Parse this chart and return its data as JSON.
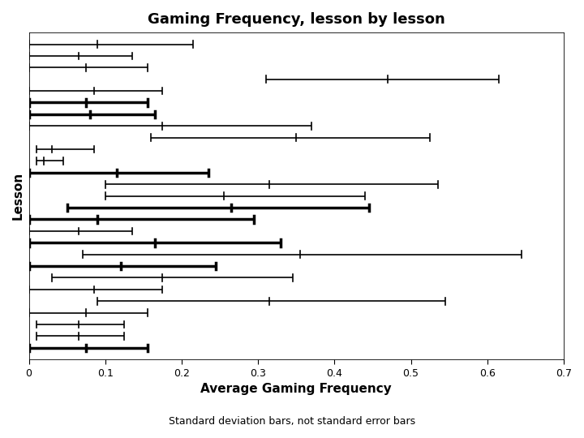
{
  "title": "Gaming Frequency, lesson by lesson",
  "xlabel": "Average Gaming Frequency",
  "ylabel": "Lesson",
  "subtitle": "Standard deviation bars, not standard error bars",
  "xlim": [
    0,
    0.7
  ],
  "xticks": [
    0,
    0.1,
    0.2,
    0.3,
    0.4,
    0.5,
    0.6,
    0.7
  ],
  "bg_color": "#ffffff",
  "title_fontsize": 13,
  "axis_label_fontsize": 11,
  "subtitle_fontsize": 9,
  "tick_fontsize": 9,
  "lessons": [
    {
      "lo": 0.0,
      "mean": 0.09,
      "hi": 0.215,
      "lw": 1.2
    },
    {
      "lo": 0.0,
      "mean": 0.065,
      "hi": 0.135,
      "lw": 1.2
    },
    {
      "lo": 0.0,
      "mean": 0.075,
      "hi": 0.155,
      "lw": 1.2
    },
    {
      "lo": 0.31,
      "mean": 0.47,
      "hi": 0.615,
      "lw": 1.2
    },
    {
      "lo": 0.0,
      "mean": 0.085,
      "hi": 0.175,
      "lw": 1.2
    },
    {
      "lo": 0.0,
      "mean": 0.075,
      "hi": 0.155,
      "lw": 2.5
    },
    {
      "lo": 0.0,
      "mean": 0.08,
      "hi": 0.165,
      "lw": 2.5
    },
    {
      "lo": 0.0,
      "mean": 0.175,
      "hi": 0.37,
      "lw": 1.2
    },
    {
      "lo": 0.16,
      "mean": 0.35,
      "hi": 0.525,
      "lw": 1.2
    },
    {
      "lo": 0.01,
      "mean": 0.03,
      "hi": 0.085,
      "lw": 1.2
    },
    {
      "lo": 0.01,
      "mean": 0.02,
      "hi": 0.045,
      "lw": 1.2
    },
    {
      "lo": 0.0,
      "mean": 0.115,
      "hi": 0.235,
      "lw": 2.5
    },
    {
      "lo": 0.1,
      "mean": 0.315,
      "hi": 0.535,
      "lw": 1.2
    },
    {
      "lo": 0.1,
      "mean": 0.255,
      "hi": 0.44,
      "lw": 1.2
    },
    {
      "lo": 0.05,
      "mean": 0.265,
      "hi": 0.445,
      "lw": 2.5
    },
    {
      "lo": 0.0,
      "mean": 0.09,
      "hi": 0.295,
      "lw": 2.5
    },
    {
      "lo": 0.0,
      "mean": 0.065,
      "hi": 0.135,
      "lw": 1.2
    },
    {
      "lo": 0.0,
      "mean": 0.165,
      "hi": 0.33,
      "lw": 2.5
    },
    {
      "lo": 0.07,
      "mean": 0.355,
      "hi": 0.645,
      "lw": 1.2
    },
    {
      "lo": 0.0,
      "mean": 0.12,
      "hi": 0.245,
      "lw": 2.5
    },
    {
      "lo": 0.03,
      "mean": 0.175,
      "hi": 0.345,
      "lw": 1.2
    },
    {
      "lo": 0.0,
      "mean": 0.085,
      "hi": 0.175,
      "lw": 1.2
    },
    {
      "lo": 0.09,
      "mean": 0.315,
      "hi": 0.545,
      "lw": 1.2
    },
    {
      "lo": 0.0,
      "mean": 0.075,
      "hi": 0.155,
      "lw": 1.2
    },
    {
      "lo": 0.01,
      "mean": 0.065,
      "hi": 0.125,
      "lw": 1.2
    },
    {
      "lo": 0.01,
      "mean": 0.065,
      "hi": 0.125,
      "lw": 1.2
    },
    {
      "lo": 0.0,
      "mean": 0.075,
      "hi": 0.155,
      "lw": 2.5
    }
  ]
}
